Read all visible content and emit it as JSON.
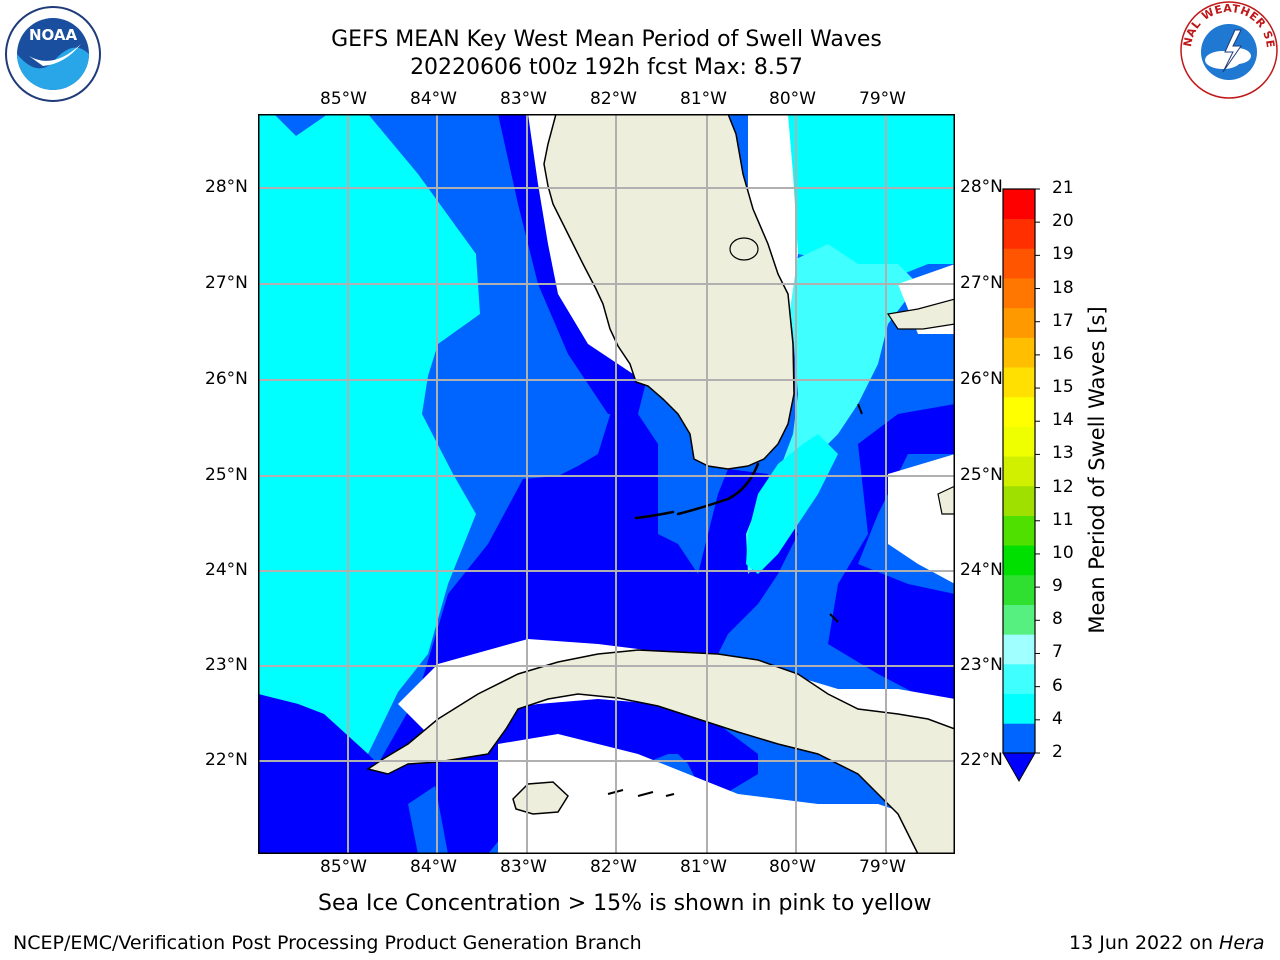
{
  "title": {
    "line1": "GEFS MEAN Key West Mean Period of Swell Waves",
    "line2": "20220606 t00z 192h fcst   Max: 8.57"
  },
  "axes": {
    "lon_labels": [
      "85°W",
      "84°W",
      "83°W",
      "82°W",
      "81°W",
      "80°W",
      "79°W"
    ],
    "lat_labels": [
      "28°N",
      "27°N",
      "26°N",
      "25°N",
      "24°N",
      "23°N",
      "22°N"
    ],
    "lon_range": [
      -86.0,
      -78.3
    ],
    "lat_range": [
      21.0,
      28.75
    ]
  },
  "colorbar": {
    "label": "Mean Period of Swell Waves [s]",
    "ticks": [
      "21",
      "20",
      "19",
      "18",
      "17",
      "16",
      "15",
      "14",
      "13",
      "12",
      "11",
      "10",
      "9",
      "8",
      "7",
      "6",
      "4",
      "2"
    ],
    "colors": [
      "#0064ff",
      "#00ffff",
      "#40ffff",
      "#a0ffff",
      "#55f080",
      "#30e030",
      "#00e000",
      "#50e000",
      "#a0e000",
      "#d0f000",
      "#f0ff00",
      "#ffff00",
      "#ffe000",
      "#ffbf00",
      "#ff9900",
      "#ff7700",
      "#ff5500",
      "#ff2f00",
      "#ff0000"
    ],
    "under_color": "#0000ff"
  },
  "colors": {
    "land": "#eeeedc",
    "sea_light": "#00ffff",
    "sea_mid": "#0064ff",
    "sea_dark": "#0000ff",
    "sea_pale": "#40ffff",
    "grid": "#b0b0b0"
  },
  "logos": {
    "left": "NOAA",
    "right": "NATIONAL WEATHER SERVICE"
  },
  "note": "Sea Ice Concentration > 15% is shown in pink to yellow",
  "footer": {
    "left": "NCEP/EMC/Verification Post Processing Product Generation Branch",
    "right_prefix": "13 Jun 2022 on ",
    "right_host": "Hera"
  }
}
